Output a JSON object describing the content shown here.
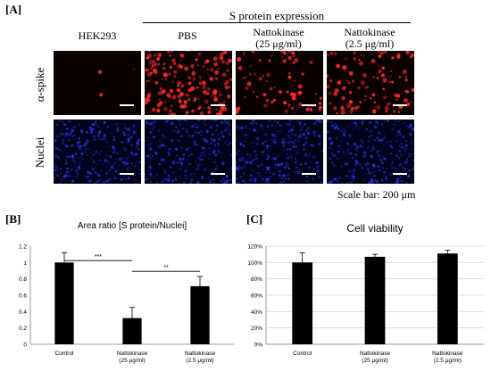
{
  "panel_a": {
    "label": "[A]",
    "s_protein_header": "S protein expression",
    "columns": [
      "HEK293",
      "PBS",
      "Nattokinase\n(25 μg/ml)",
      "Nattokinase\n(2.5 μg/ml)"
    ],
    "columns_line1": [
      "HEK293",
      "PBS",
      "Nattokinase",
      "Nattokinase"
    ],
    "columns_line2": [
      "",
      "",
      "(25 μg/ml)",
      "(2.5 μg/ml)"
    ],
    "rows": [
      "α-spike",
      "Nuclei"
    ],
    "scale_bar_text": "Scale bar: 200 μm",
    "spike_density": [
      0.0,
      1.0,
      0.45,
      0.6
    ],
    "colors": {
      "spike": "#ff2a2a",
      "nuclei": "#2a3cff"
    }
  },
  "panel_b": {
    "label": "[B]"
  },
  "panel_c": {
    "label": "[C]"
  },
  "chart_data": [
    {
      "type": "bar",
      "title": "Area ratio [S protein/Nuclei]",
      "categories": [
        "Control",
        "Nattokinase\n(25 μg/ml)",
        "Nattokinase\n(2.5 μg/ml)"
      ],
      "values": [
        1.0,
        0.32,
        0.71
      ],
      "errors": [
        0.12,
        0.13,
        0.12
      ],
      "ylim": [
        0,
        1.2
      ],
      "yticks": [
        "0",
        "0.2",
        "0.4",
        "0.6",
        "0.8",
        "1",
        "1.2"
      ],
      "significance": [
        {
          "from": 0,
          "to": 1,
          "text": "***"
        },
        {
          "from": 1,
          "to": 2,
          "text": "**"
        }
      ],
      "bar_color": "#000000"
    },
    {
      "type": "bar",
      "title": "Cell viability",
      "categories": [
        "Control",
        "Nattokinase\n(25 μg/ml)",
        "Nattokinase\n(2.5 μg/ml)"
      ],
      "values": [
        100,
        107,
        111
      ],
      "errors": [
        12,
        3,
        4
      ],
      "ylim": [
        0,
        120
      ],
      "yticks": [
        "0%",
        "20%",
        "40%",
        "60%",
        "80%",
        "100%",
        "120%"
      ],
      "grid": true,
      "bar_color": "#000000"
    }
  ]
}
